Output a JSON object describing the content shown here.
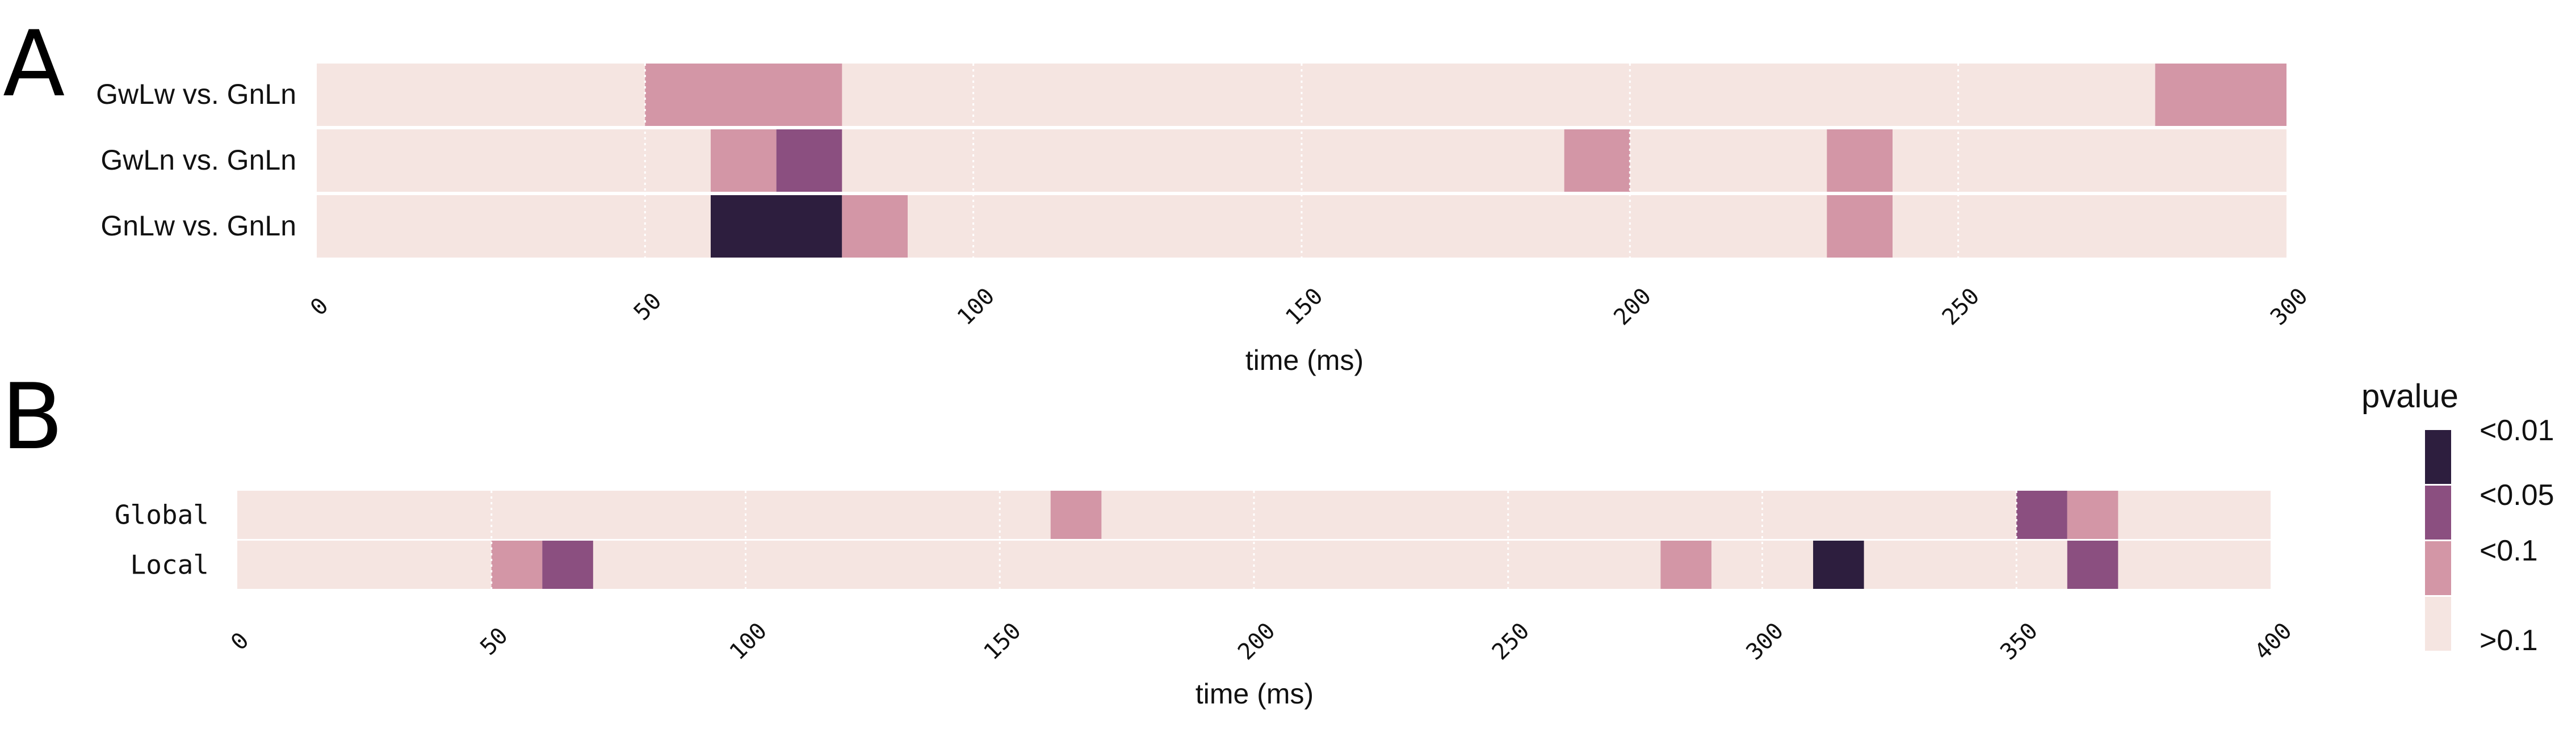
{
  "chart_data": [
    {
      "type": "heatmap",
      "panel_label": "A",
      "title": "",
      "xlabel": "time (ms)",
      "ylabel": "",
      "xlim": [
        0,
        300
      ],
      "xticks": [
        "0",
        "50",
        "100",
        "150",
        "200",
        "250",
        "300"
      ],
      "bin_width_ms": 10,
      "rows": [
        {
          "label": "GwLw vs. GnLn",
          "cells": [
            {
              "start": 50,
              "end": 80,
              "level": "<0.1"
            },
            {
              "start": 280,
              "end": 300,
              "level": "<0.1"
            }
          ]
        },
        {
          "label": "GwLn vs. GnLn",
          "cells": [
            {
              "start": 60,
              "end": 70,
              "level": "<0.1"
            },
            {
              "start": 70,
              "end": 80,
              "level": "<0.05"
            },
            {
              "start": 190,
              "end": 200,
              "level": "<0.1"
            },
            {
              "start": 230,
              "end": 240,
              "level": "<0.1"
            }
          ]
        },
        {
          "label": "GnLw vs. GnLn",
          "cells": [
            {
              "start": 60,
              "end": 80,
              "level": "<0.01"
            },
            {
              "start": 80,
              "end": 90,
              "level": "<0.1"
            },
            {
              "start": 230,
              "end": 240,
              "level": "<0.1"
            }
          ]
        }
      ]
    },
    {
      "type": "heatmap",
      "panel_label": "B",
      "title": "",
      "xlabel": "time (ms)",
      "ylabel": "",
      "xlim": [
        0,
        400
      ],
      "xticks": [
        "0",
        "50",
        "100",
        "150",
        "200",
        "250",
        "300",
        "350",
        "400"
      ],
      "bin_width_ms": 10,
      "rows": [
        {
          "label": "Global",
          "cells": [
            {
              "start": 160,
              "end": 170,
              "level": "<0.1"
            },
            {
              "start": 350,
              "end": 360,
              "level": "<0.05"
            },
            {
              "start": 360,
              "end": 370,
              "level": "<0.1"
            }
          ]
        },
        {
          "label": "Local",
          "cells": [
            {
              "start": 50,
              "end": 60,
              "level": "<0.1"
            },
            {
              "start": 60,
              "end": 70,
              "level": "<0.05"
            },
            {
              "start": 280,
              "end": 290,
              "level": "<0.1"
            },
            {
              "start": 310,
              "end": 320,
              "level": "<0.01"
            },
            {
              "start": 360,
              "end": 370,
              "level": "<0.05"
            }
          ]
        }
      ]
    }
  ],
  "legend": {
    "title": "pvalue",
    "placement": "right",
    "entries": [
      {
        "label": "<0.01",
        "color": "#2d1e3e"
      },
      {
        "label": "<0.05",
        "color": "#8b4f80"
      },
      {
        "label": "<0.1",
        "color": "#d396a6"
      },
      {
        "label": ">0.1",
        "color": "#f5e5e1"
      }
    ]
  },
  "colors": {
    "background_cell": "#f5e5e1",
    "grid_line": "#ffffff"
  }
}
